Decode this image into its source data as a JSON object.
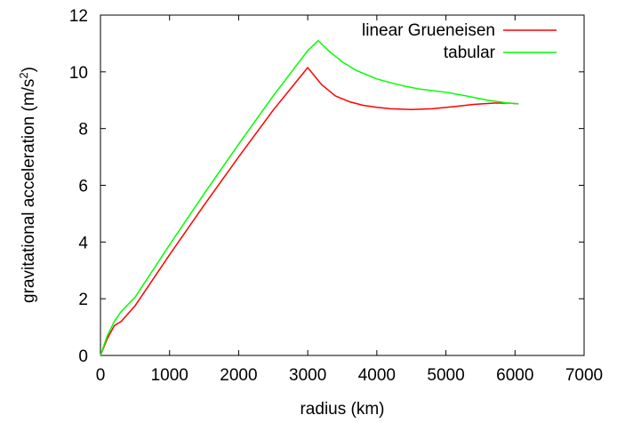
{
  "chart_data": {
    "type": "line",
    "title": "",
    "xlabel": "radius (km)",
    "ylabel_main": "gravitational acceleration (m/s",
    "ylabel_sup": "2",
    "ylabel_tail": ")",
    "xlim": [
      0,
      7000
    ],
    "ylim": [
      0,
      12
    ],
    "xticks": [
      0,
      1000,
      2000,
      3000,
      4000,
      5000,
      6000,
      7000
    ],
    "yticks": [
      0,
      2,
      4,
      6,
      8,
      10,
      12
    ],
    "grid": false,
    "legend_position": "top-right",
    "series": [
      {
        "name": "linear Grueneisen",
        "color": "#ff0000",
        "x": [
          0,
          100,
          200,
          300,
          500,
          1000,
          1500,
          2000,
          2500,
          2900,
          3000,
          3100,
          3200,
          3400,
          3600,
          3800,
          4000,
          4200,
          4500,
          4800,
          5100,
          5400,
          5700,
          5900,
          6050
        ],
        "y": [
          0,
          0.6,
          1.05,
          1.2,
          1.75,
          3.55,
          5.3,
          7.0,
          8.65,
          9.85,
          10.15,
          9.85,
          9.55,
          9.15,
          8.95,
          8.82,
          8.75,
          8.7,
          8.67,
          8.7,
          8.77,
          8.85,
          8.9,
          8.9,
          8.87
        ]
      },
      {
        "name": "tabular",
        "color": "#00ff00",
        "x": [
          0,
          100,
          200,
          300,
          500,
          1000,
          1500,
          2000,
          2500,
          3000,
          3150,
          3300,
          3500,
          3700,
          4000,
          4300,
          4600,
          5000,
          5300,
          5600,
          5900,
          6050
        ],
        "y": [
          0,
          0.7,
          1.2,
          1.55,
          2.05,
          3.9,
          5.7,
          7.45,
          9.15,
          10.75,
          11.1,
          10.75,
          10.35,
          10.05,
          9.75,
          9.55,
          9.4,
          9.28,
          9.15,
          9.0,
          8.9,
          8.87
        ]
      }
    ]
  }
}
